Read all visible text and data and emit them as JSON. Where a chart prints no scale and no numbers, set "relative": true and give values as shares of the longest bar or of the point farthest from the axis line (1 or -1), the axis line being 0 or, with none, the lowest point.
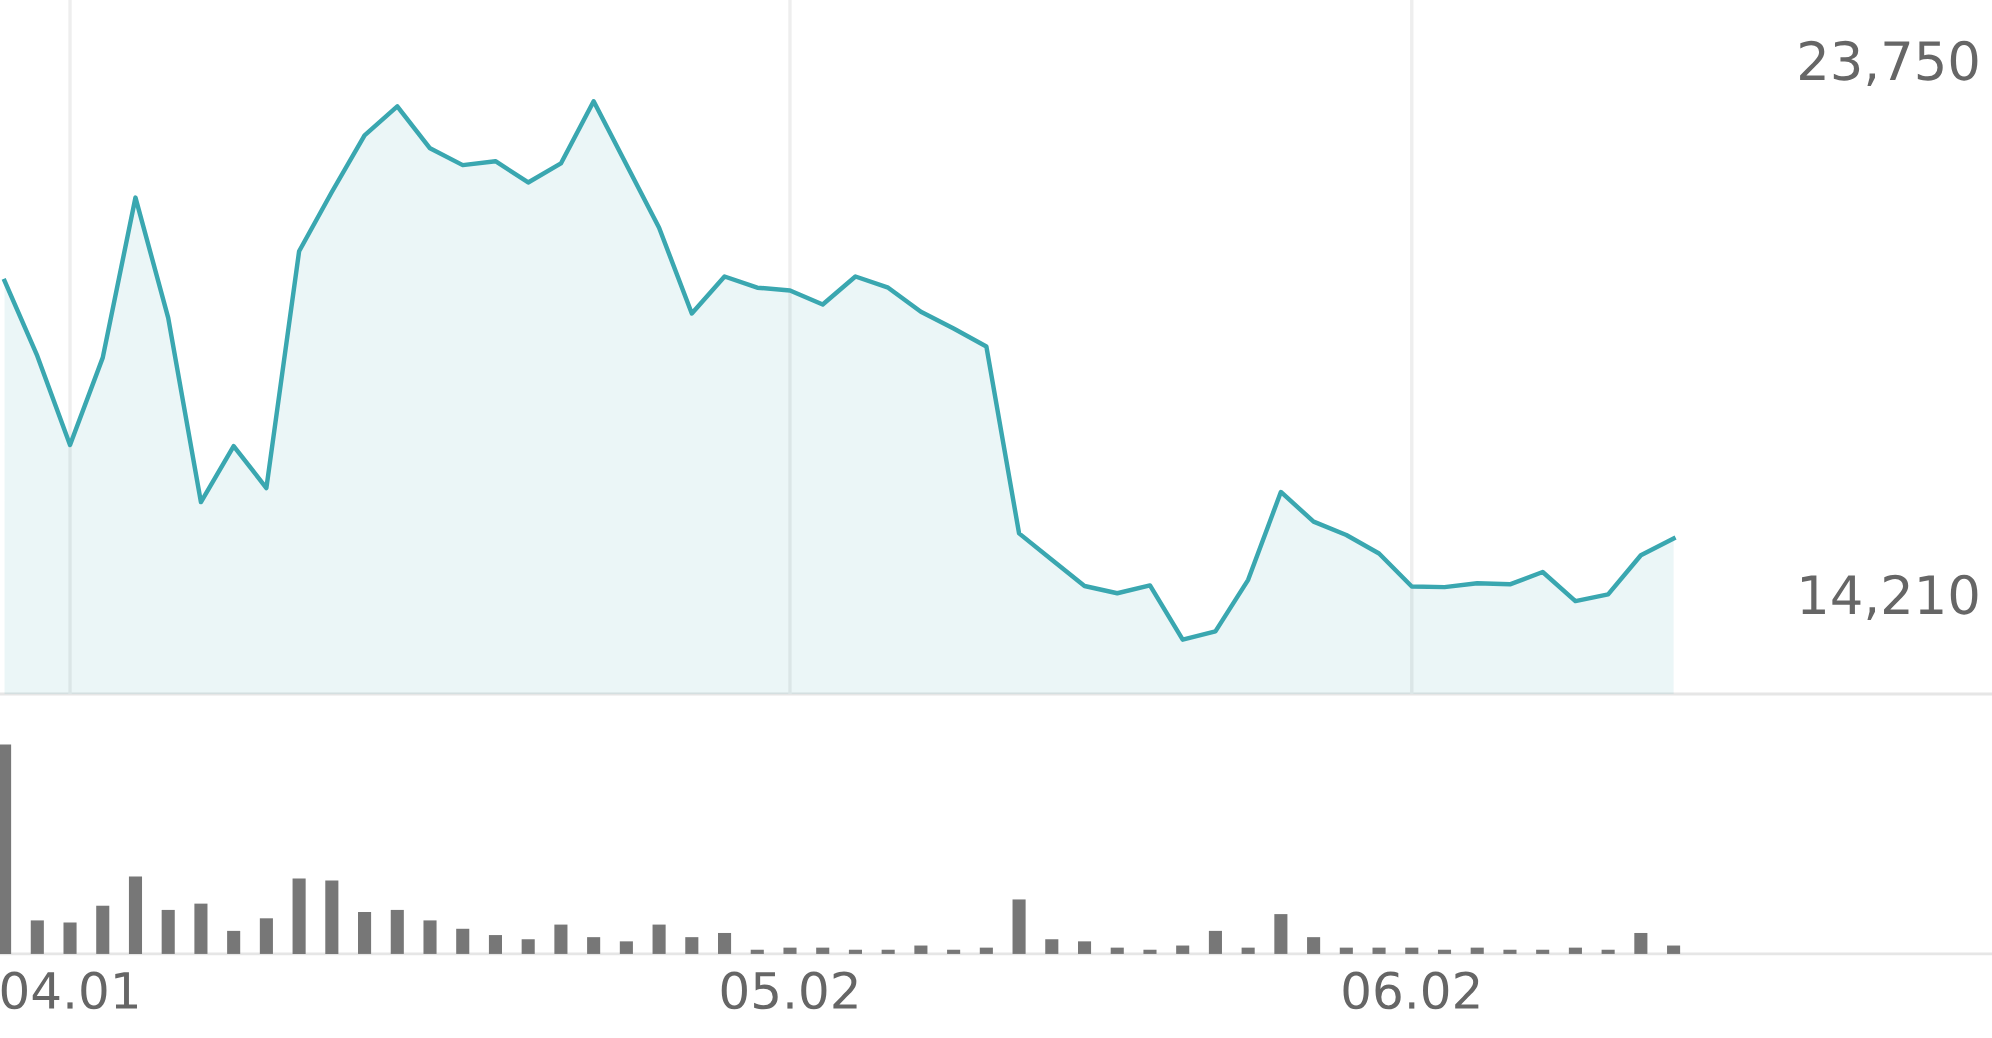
{
  "chart_data": [
    {
      "type": "area",
      "categories": [
        null,
        null,
        "04.01",
        null,
        null,
        null,
        null,
        null,
        null,
        null,
        null,
        null,
        null,
        null,
        null,
        null,
        null,
        null,
        null,
        null,
        null,
        null,
        null,
        null,
        "05.02",
        null,
        null,
        null,
        null,
        null,
        null,
        null,
        null,
        null,
        null,
        null,
        null,
        null,
        null,
        null,
        null,
        null,
        null,
        "06.02",
        null,
        null,
        null,
        null,
        null,
        null,
        null,
        null,
        null,
        null,
        null,
        null,
        null,
        null,
        null,
        null,
        null
      ],
      "series": [
        {
          "color": "#3aa7b0",
          "values": [
            19800,
            18460,
            16870,
            18430,
            21290,
            19140,
            15850,
            16850,
            16100,
            20330,
            21390,
            22400,
            22920,
            22170,
            21870,
            21940,
            21560,
            21900,
            23010,
            21880,
            20750,
            19220,
            19880,
            19680,
            19630,
            19380,
            19880,
            19680,
            19250,
            18950,
            18630,
            15290,
            14820,
            14350,
            14220,
            14360,
            13390,
            13540,
            14460,
            16030,
            15500,
            15260,
            14930,
            14340,
            14330,
            14400,
            14380,
            14600,
            14080,
            14200,
            14900,
            15200,
            null,
            null,
            null,
            null,
            null,
            null,
            null,
            null,
            null
          ]
        }
      ],
      "ylim": [
        12420,
        24820
      ],
      "yticks": [
        {
          "value": 14210,
          "label": "14,210"
        },
        {
          "value": 23750,
          "label": "23,750"
        }
      ],
      "grid": "x",
      "tick_labels": "y"
    },
    {
      "type": "bar",
      "relative": true,
      "categories": [
        null,
        null,
        "04.01",
        null,
        null,
        null,
        null,
        null,
        null,
        null,
        null,
        null,
        null,
        null,
        null,
        null,
        null,
        null,
        null,
        null,
        null,
        null,
        null,
        null,
        "05.02",
        null,
        null,
        null,
        null,
        null,
        null,
        null,
        null,
        null,
        null,
        null,
        null,
        null,
        null,
        null,
        null,
        null,
        null,
        "06.02",
        null,
        null,
        null,
        null,
        null,
        null,
        null,
        null,
        null,
        null,
        null,
        null,
        null,
        null,
        null,
        null,
        null
      ],
      "series": [
        {
          "color": "#777777",
          "values": [
            1.0,
            0.16,
            0.15,
            0.23,
            0.37,
            0.21,
            0.24,
            0.11,
            0.17,
            0.36,
            0.35,
            0.2,
            0.21,
            0.16,
            0.12,
            0.09,
            0.07,
            0.14,
            0.08,
            0.06,
            0.14,
            0.08,
            0.1,
            0.02,
            0.03,
            0.03,
            0.02,
            0.02,
            0.04,
            0.02,
            0.03,
            0.26,
            0.07,
            0.06,
            0.03,
            0.02,
            0.04,
            0.11,
            0.03,
            0.19,
            0.08,
            0.03,
            0.03,
            0.03,
            0.02,
            0.03,
            0.02,
            0.02,
            0.03,
            0.02,
            0.1,
            0.04,
            null,
            null,
            null,
            null,
            null,
            null,
            null,
            null,
            null
          ]
        }
      ],
      "grid": false,
      "tick_labels": "x"
    }
  ]
}
